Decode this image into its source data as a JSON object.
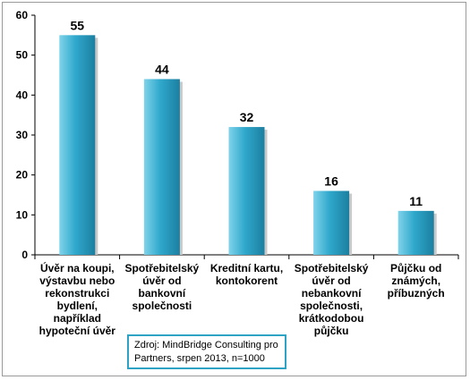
{
  "chart_data": {
    "type": "bar",
    "categories": [
      "Úvěr na koupi, výstavbu nebo rekonstrukci bydlení, například hypoteční úvěr",
      "Spotřebitelský úvěr od bankovní společnosti",
      "Kreditní kartu, kontokorent",
      "Spotřebitelský úvěr od nebankovní společnosti, krátkodobou půjčku",
      "Půjčku od známých, příbuzných"
    ],
    "category_lines": [
      [
        "Úvěr na koupi,",
        "výstavbu nebo",
        "rekonstrukci",
        "bydlení,",
        "například",
        "hypoteční úvěr"
      ],
      [
        "Spotřebitelský",
        "úvěr od",
        "bankovní",
        "společnosti"
      ],
      [
        "Kreditní kartu,",
        "kontokorent"
      ],
      [
        "Spotřebitelský",
        "úvěr od",
        "nebankovní",
        "společnosti,",
        "krátkodobou",
        "půjčku"
      ],
      [
        "Půjčku od",
        "známých,",
        "příbuzných"
      ]
    ],
    "values": [
      55,
      44,
      32,
      16,
      11
    ],
    "data_labels": [
      "55",
      "44",
      "32",
      "16",
      "11"
    ],
    "ylim": [
      0,
      60
    ],
    "yticks": [
      "0",
      "10",
      "20",
      "30",
      "40",
      "50",
      "60"
    ],
    "grid": false,
    "bar_color": "#2fa8cc",
    "bar_color_light": "#7fd3ea",
    "bar_color_dark": "#1c7fa0"
  },
  "source_note": "Zdroj: MindBridge Consulting pro Partners, srpen 2013, n=1000",
  "source_border_color": "#2fa3c4"
}
